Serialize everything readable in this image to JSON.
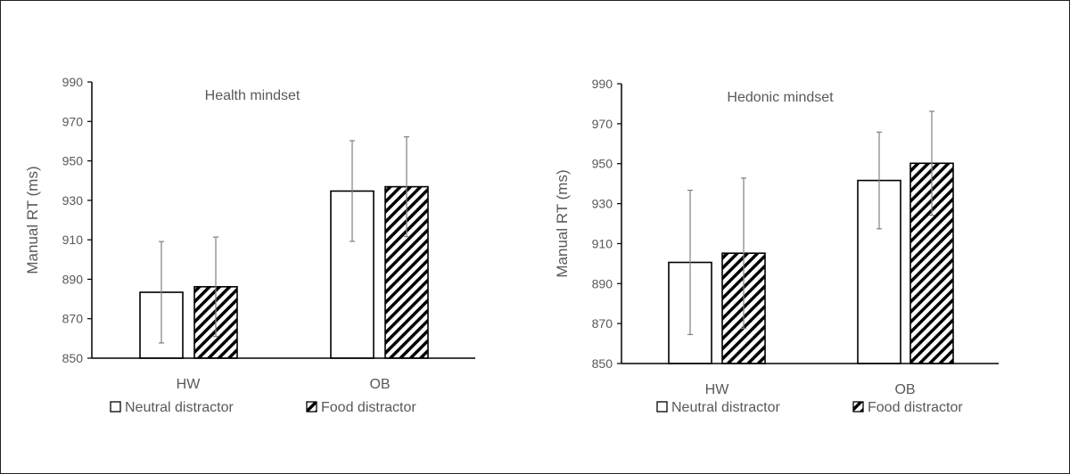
{
  "chart_data": [
    {
      "type": "bar",
      "title": "Health mindset",
      "ylabel": "Manual RT (ms)",
      "xlabel": "",
      "ylim": [
        850,
        990
      ],
      "yticks": [
        850,
        870,
        890,
        910,
        930,
        950,
        970,
        990
      ],
      "categories": [
        "HW",
        "OB"
      ],
      "series": [
        {
          "name": "Neutral distractor",
          "pattern": "plain",
          "values": [
            883.4,
            934.7
          ],
          "error": [
            25.7,
            25.5
          ]
        },
        {
          "name": "Food distractor",
          "pattern": "hatched",
          "values": [
            886.2,
            936.9
          ],
          "error": [
            25.2,
            25.3
          ]
        }
      ],
      "legend": "bottom",
      "grid": false
    },
    {
      "type": "bar",
      "title": "Hedonic mindset",
      "ylabel": "Manual RT (ms)",
      "xlabel": "",
      "ylim": [
        850,
        990
      ],
      "yticks": [
        850,
        870,
        890,
        910,
        930,
        950,
        970,
        990
      ],
      "categories": [
        "HW",
        "OB"
      ],
      "series": [
        {
          "name": "Neutral distractor",
          "pattern": "plain",
          "values": [
            900.6,
            941.6
          ],
          "error": [
            36.1,
            24.2
          ]
        },
        {
          "name": "Food distractor",
          "pattern": "hatched",
          "values": [
            905.2,
            950.2
          ],
          "error": [
            37.6,
            26.0
          ]
        }
      ],
      "legend": "bottom",
      "grid": false
    }
  ],
  "colors": {
    "bar_edge": "#000000",
    "bar_fill": "#ffffff",
    "error_bar": "#808080",
    "text": "#595959"
  }
}
